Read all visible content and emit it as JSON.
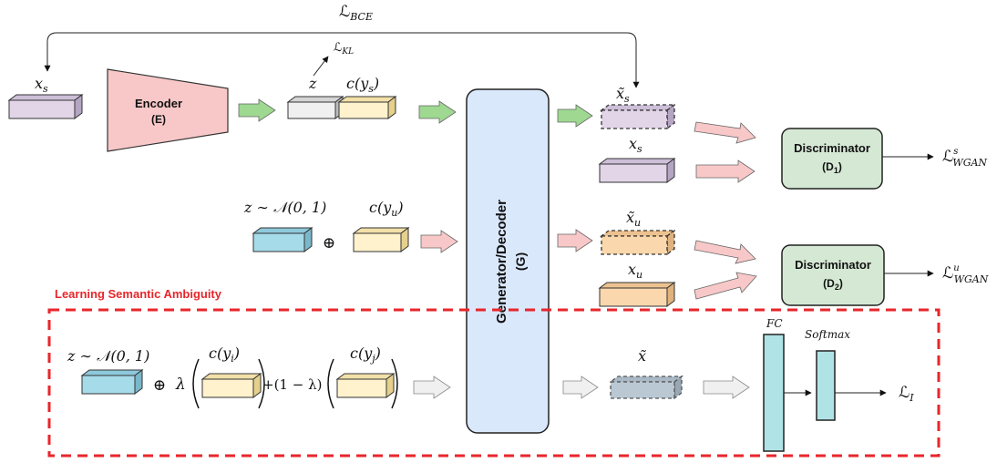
{
  "loss_bce": "ℒ",
  "loss_bce_sub": "BCE",
  "loss_kl": "ℒ",
  "loss_kl_sub": "KL",
  "x_s": "x",
  "x_s_sub": "s",
  "encoder": {
    "name": "Encoder",
    "sym": "(E)"
  },
  "z": "z",
  "c_ys": "c(y",
  "c_ys_sub": "s",
  "c_ys_close": ")",
  "xs_tilde": "x̃",
  "xs_tilde_sub": "s",
  "xs_real": "x",
  "xs_real_sub": "s",
  "disc1": {
    "name": "Discriminator",
    "sym_main": "(D",
    "sym_sub": "1",
    "sym_close": ")"
  },
  "loss_wgan_s": "ℒ",
  "loss_wgan_s_sup": "s",
  "loss_wgan_s_sub": "WGAN",
  "z_prior_u": "z ∼ 𝒩(0, 1)",
  "c_yu": "c(y",
  "c_yu_sub": "u",
  "c_yu_close": ")",
  "oplus_u": "⊕",
  "generator": {
    "name": "Generator/Decoder",
    "sym": "(G)"
  },
  "xu_tilde": "x̃",
  "xu_tilde_sub": "u",
  "xu_real": "x",
  "xu_real_sub": "u",
  "disc2": {
    "name": "Discriminator",
    "sym_main": "(D",
    "sym_sub": "2",
    "sym_close": ")"
  },
  "loss_wgan_u": "ℒ",
  "loss_wgan_u_sup": "u",
  "loss_wgan_u_sub": "WGAN",
  "section_label": "Learning Semantic Ambiguity",
  "z_prior_bottom": "z ∼ 𝒩(0, 1)",
  "oplus_bottom": "⊕",
  "lambda": "λ",
  "c_yi": "c(y",
  "c_yi_sub": "i",
  "c_yi_close": ")",
  "plus_one_minus_lambda": "+(1 − λ)",
  "c_yj": "c(y",
  "c_yj_sub": "j",
  "c_yj_close": ")",
  "x_tilde": "x̃",
  "fc": "FC",
  "softmax": "Softmax",
  "loss_i": "ℒ",
  "loss_i_sub": "I",
  "colors": {
    "encoder_fill": "#f8c8c8",
    "generator_fill": "#dae8fc",
    "disc_fill": "#d5e8d4",
    "purple": "#e1d5e7",
    "yellow": "#fff2cc",
    "orange": "#fad7ac",
    "blue": "#a6dbea",
    "gray_feature": "#bac8d3",
    "teal": "#b0e3e6",
    "green_arrow": "#9ed891",
    "pink_arrow": "#f8c8c8",
    "red_dash": "#e8262b"
  }
}
